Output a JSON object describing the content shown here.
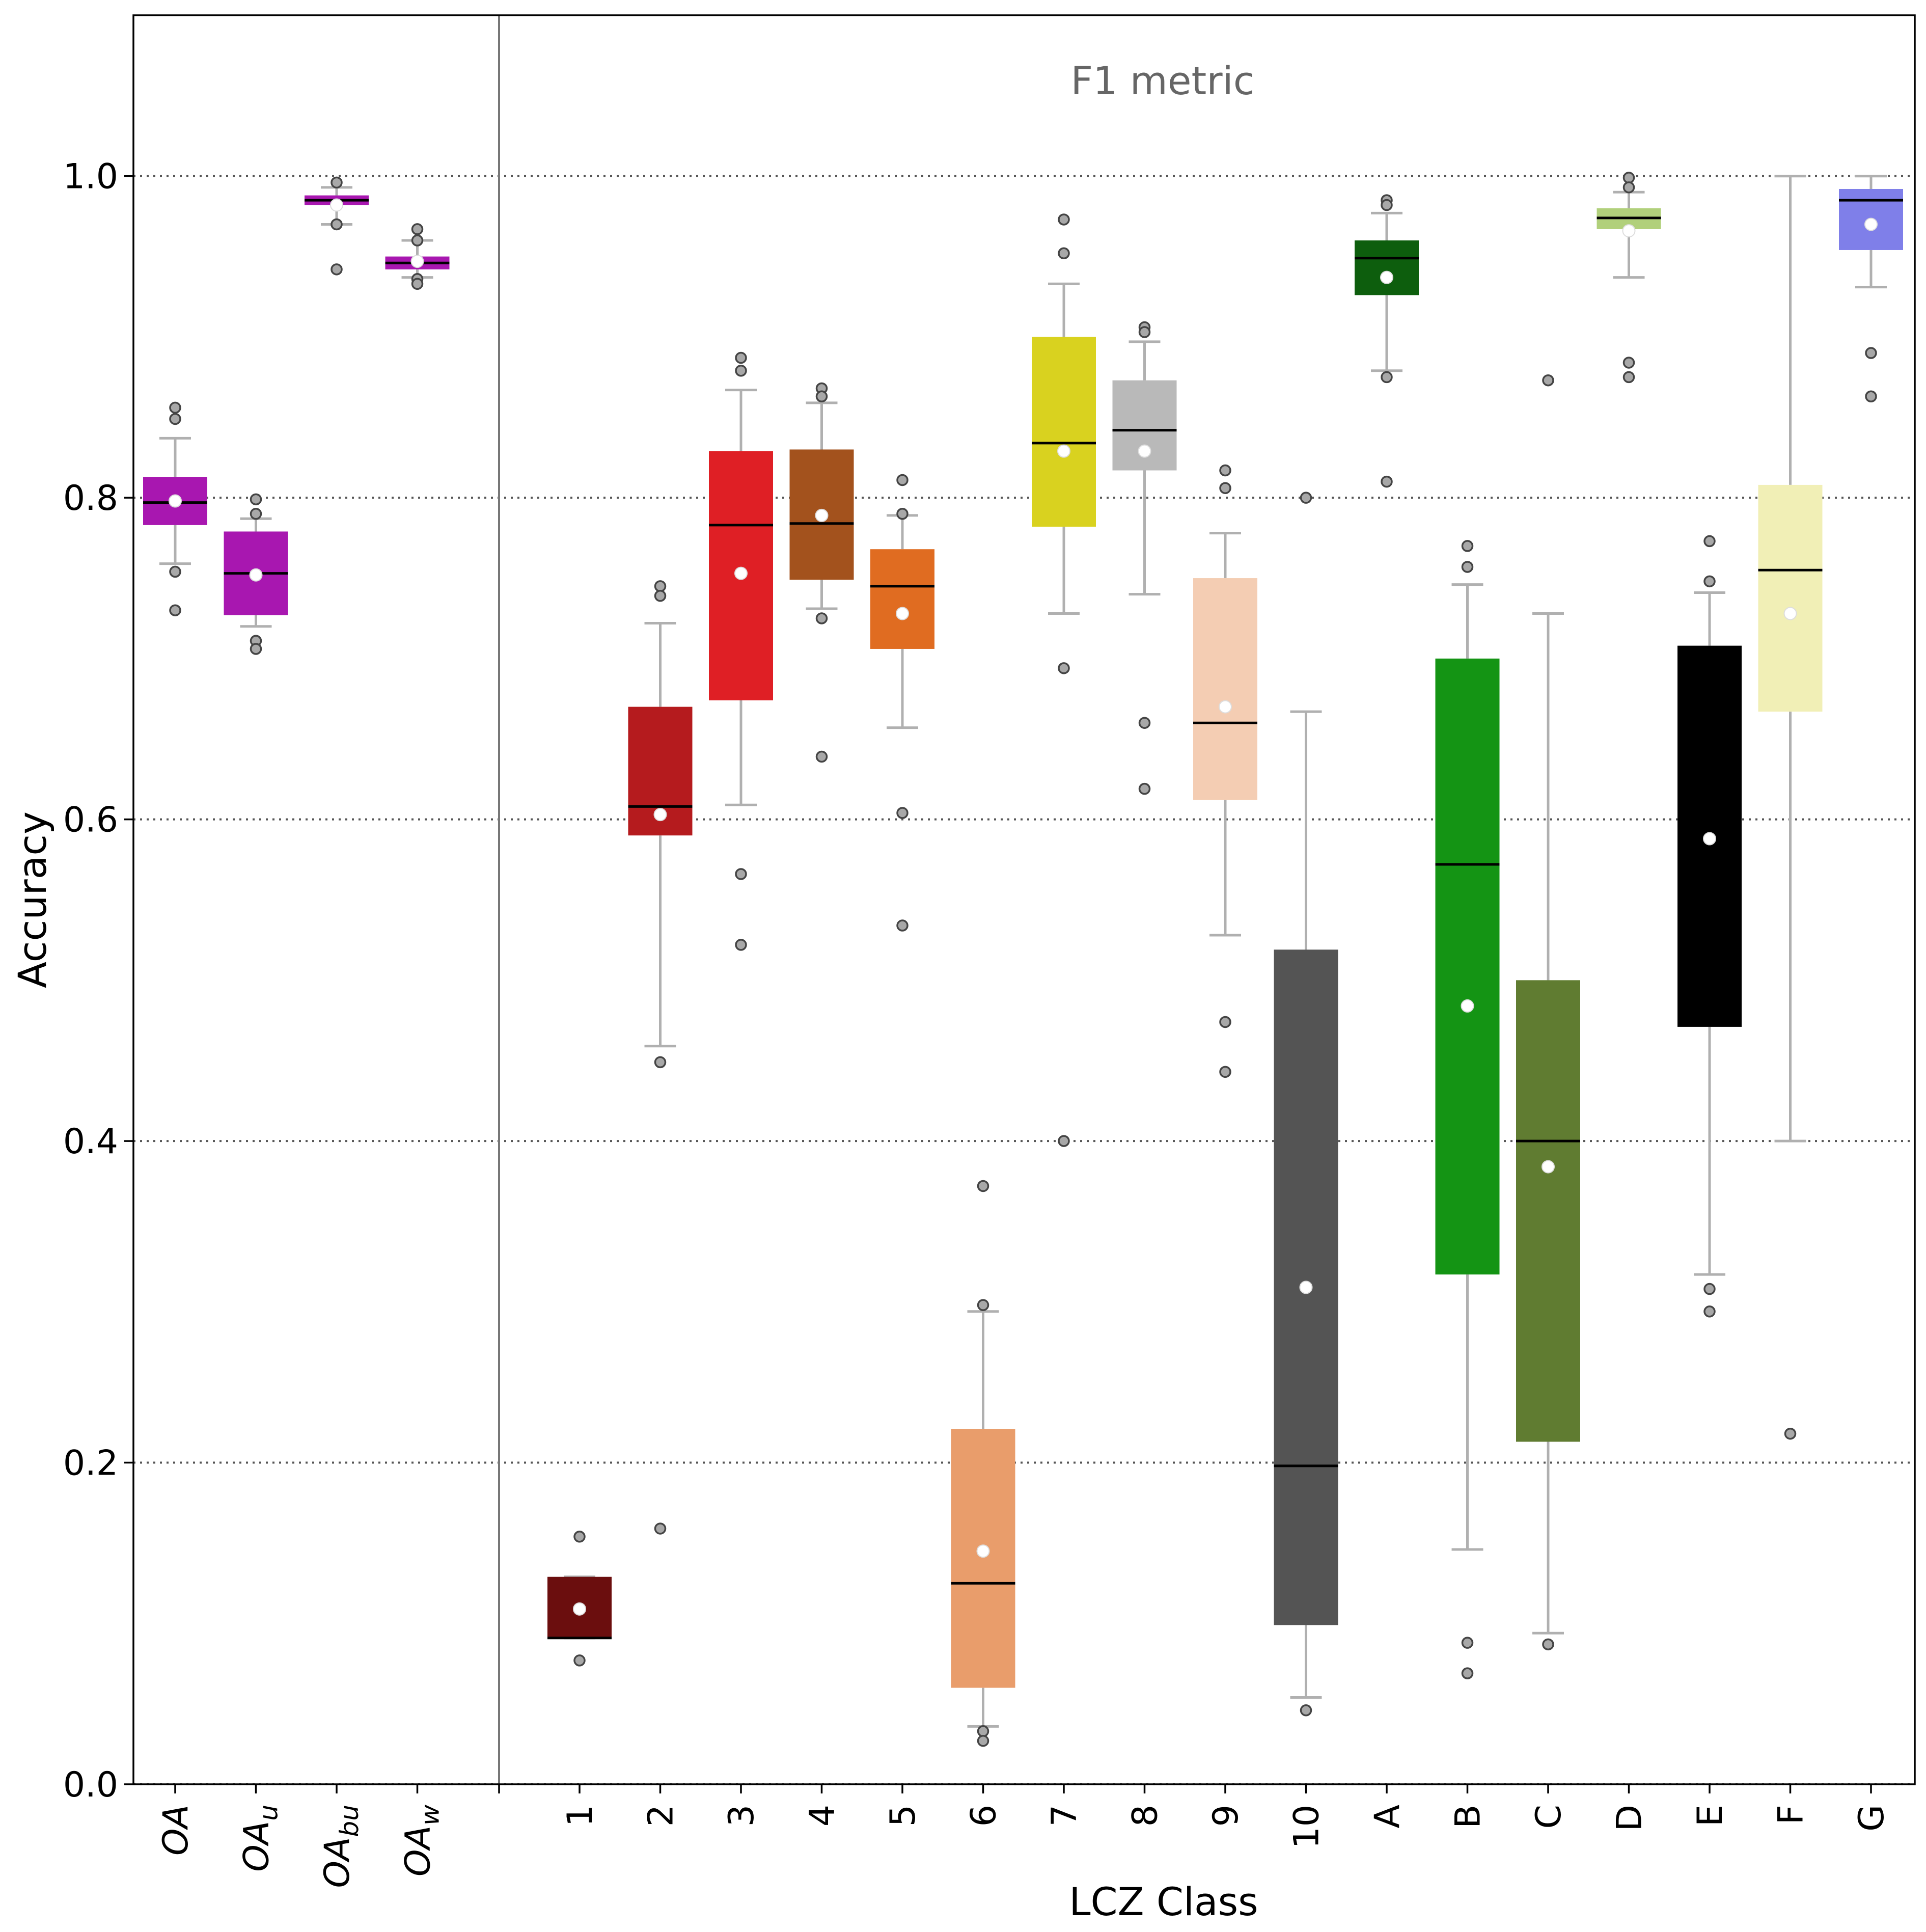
{
  "chart_data": {
    "type": "box",
    "xlabel": "LCZ Class",
    "ylabel": "Accuracy",
    "annotation": "F1 metric",
    "ylim": [
      0.0,
      1.1
    ],
    "yticks": [
      "0.0",
      "0.2",
      "0.4",
      "0.6",
      "0.8",
      "1.0"
    ],
    "ytick_values": [
      0.0,
      0.2,
      0.4,
      0.6,
      0.8,
      1.0
    ],
    "grid": "horizontal dotted",
    "overall_accuracy": [
      {
        "base": "OA",
        "sub": "",
        "label": "OA",
        "color": "#a817b0",
        "q1": 0.783,
        "median": 0.797,
        "q3": 0.813,
        "whislo": 0.759,
        "whishi": 0.837,
        "mean": 0.798,
        "fliers": [
          0.856,
          0.849,
          0.754,
          0.73
        ]
      },
      {
        "base": "OA",
        "sub": "u",
        "label": "OA_u",
        "color": "#a817b0",
        "q1": 0.727,
        "median": 0.753,
        "q3": 0.779,
        "whislo": 0.72,
        "whishi": 0.787,
        "mean": 0.752,
        "fliers": [
          0.799,
          0.79,
          0.711,
          0.706
        ]
      },
      {
        "base": "OA",
        "sub": "bu",
        "label": "OA_bu",
        "color": "#a817b0",
        "q1": 0.982,
        "median": 0.985,
        "q3": 0.988,
        "whislo": 0.97,
        "whishi": 0.993,
        "mean": 0.982,
        "fliers": [
          0.996,
          0.97,
          0.942
        ]
      },
      {
        "base": "OA",
        "sub": "w",
        "label": "OA_w",
        "color": "#a817b0",
        "q1": 0.942,
        "median": 0.946,
        "q3": 0.95,
        "whislo": 0.937,
        "whishi": 0.96,
        "mean": 0.947,
        "fliers": [
          0.967,
          0.96,
          0.936,
          0.933
        ]
      }
    ],
    "lcz_classes": [
      {
        "label": "1",
        "color": "#6b0e0e",
        "q1": 0.091,
        "median": 0.091,
        "q3": 0.129,
        "whislo": 0.091,
        "whishi": 0.129,
        "mean": 0.109,
        "fliers": [
          0.154,
          0.077
        ]
      },
      {
        "label": "2",
        "color": "#b51b1e",
        "q1": 0.59,
        "median": 0.608,
        "q3": 0.67,
        "whislo": 0.459,
        "whishi": 0.722,
        "mean": 0.603,
        "fliers": [
          0.745,
          0.739,
          0.449,
          0.159
        ]
      },
      {
        "label": "3",
        "color": "#df1f25",
        "q1": 0.674,
        "median": 0.783,
        "q3": 0.829,
        "whislo": 0.609,
        "whishi": 0.867,
        "mean": 0.753,
        "fliers": [
          0.887,
          0.879,
          0.566,
          0.522
        ]
      },
      {
        "label": "4",
        "color": "#a3521d",
        "q1": 0.749,
        "median": 0.784,
        "q3": 0.83,
        "whislo": 0.731,
        "whishi": 0.859,
        "mean": 0.789,
        "fliers": [
          0.868,
          0.863,
          0.725,
          0.639
        ]
      },
      {
        "label": "5",
        "color": "#e06c21",
        "q1": 0.706,
        "median": 0.745,
        "q3": 0.768,
        "whislo": 0.657,
        "whishi": 0.789,
        "mean": 0.728,
        "fliers": [
          0.811,
          0.79,
          0.604,
          0.534
        ]
      },
      {
        "label": "6",
        "color": "#e99d6b",
        "q1": 0.06,
        "median": 0.125,
        "q3": 0.221,
        "whislo": 0.036,
        "whishi": 0.294,
        "mean": 0.145,
        "fliers": [
          0.372,
          0.298,
          0.033,
          0.027
        ]
      },
      {
        "label": "7",
        "color": "#d9d21f",
        "q1": 0.782,
        "median": 0.834,
        "q3": 0.9,
        "whislo": 0.728,
        "whishi": 0.933,
        "mean": 0.829,
        "fliers": [
          0.973,
          0.952,
          0.694,
          0.4
        ]
      },
      {
        "label": "8",
        "color": "#b9b9b9",
        "q1": 0.817,
        "median": 0.842,
        "q3": 0.873,
        "whislo": 0.74,
        "whishi": 0.897,
        "mean": 0.829,
        "fliers": [
          0.906,
          0.903,
          0.66,
          0.619
        ]
      },
      {
        "label": "9",
        "color": "#f4cdb3",
        "q1": 0.612,
        "median": 0.66,
        "q3": 0.75,
        "whislo": 0.528,
        "whishi": 0.778,
        "mean": 0.67,
        "fliers": [
          0.817,
          0.806,
          0.474,
          0.443
        ]
      },
      {
        "label": "10",
        "color": "#545454",
        "q1": 0.099,
        "median": 0.198,
        "q3": 0.519,
        "whislo": 0.054,
        "whishi": 0.667,
        "mean": 0.309,
        "fliers": [
          0.8,
          0.046
        ]
      },
      {
        "label": "A",
        "color": "#0d5e0d",
        "q1": 0.926,
        "median": 0.949,
        "q3": 0.96,
        "whislo": 0.879,
        "whishi": 0.977,
        "mean": 0.937,
        "fliers": [
          0.985,
          0.982,
          0.875,
          0.81
        ]
      },
      {
        "label": "B",
        "color": "#149414",
        "q1": 0.317,
        "median": 0.572,
        "q3": 0.7,
        "whislo": 0.146,
        "whishi": 0.746,
        "mean": 0.484,
        "fliers": [
          0.77,
          0.757,
          0.088,
          0.069
        ]
      },
      {
        "label": "C",
        "color": "#607c31",
        "q1": 0.213,
        "median": 0.4,
        "q3": 0.5,
        "whislo": 0.094,
        "whishi": 0.728,
        "mean": 0.384,
        "fliers": [
          0.873,
          0.087
        ]
      },
      {
        "label": "D",
        "color": "#b1d07b",
        "q1": 0.967,
        "median": 0.974,
        "q3": 0.98,
        "whislo": 0.937,
        "whishi": 0.99,
        "mean": 0.966,
        "fliers": [
          0.999,
          0.993,
          0.884,
          0.875
        ]
      },
      {
        "label": "E",
        "color": "#000000",
        "q1": 0.471,
        "median": 0.616,
        "q3": 0.708,
        "whislo": 0.317,
        "whishi": 0.741,
        "mean": 0.588,
        "fliers": [
          0.773,
          0.748,
          0.308,
          0.294
        ]
      },
      {
        "label": "F",
        "color": "#f1efb6",
        "q1": 0.667,
        "median": 0.755,
        "q3": 0.808,
        "whislo": 0.4,
        "whishi": 1.0,
        "mean": 0.728,
        "fliers": [
          0.218
        ]
      },
      {
        "label": "G",
        "color": "#7f7fe9",
        "q1": 0.954,
        "median": 0.985,
        "q3": 0.992,
        "whislo": 0.931,
        "whishi": 1.0,
        "mean": 0.97,
        "fliers": [
          0.89,
          0.863
        ]
      }
    ]
  }
}
